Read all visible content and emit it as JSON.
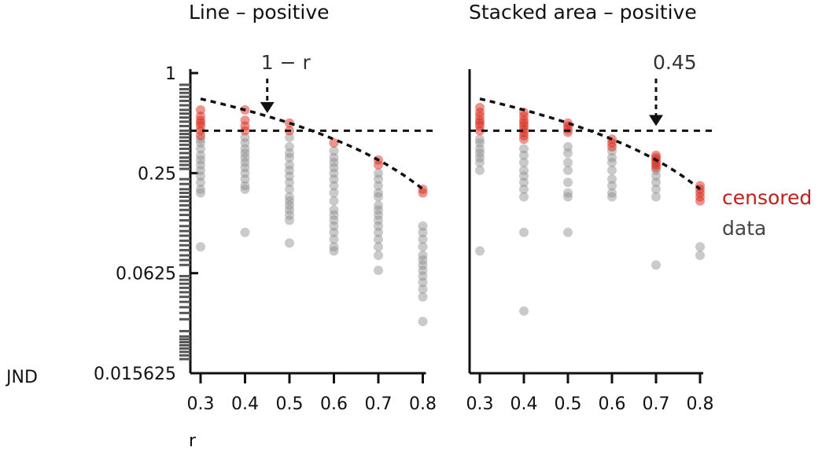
{
  "chart_data": {
    "type": "scatter",
    "xlabel": "r",
    "ylabel": "JND",
    "legend": {
      "placement": "right",
      "entries": [
        {
          "label": "censored",
          "color": "#c0201b"
        },
        {
          "label": "data",
          "color": "#444444"
        }
      ]
    },
    "x_ticks": [
      "0.3",
      "0.4",
      "0.5",
      "0.6",
      "0.7",
      "0.8"
    ],
    "y_ticks": [
      "1",
      "0.25",
      "0.0625",
      "0.015625"
    ],
    "y_scale": "log",
    "ylim": [
      0.015625,
      1
    ],
    "colors": {
      "censored": "#d92a1c",
      "data": "#8a8a8a",
      "rug": "#555555",
      "reference": "#111111"
    },
    "panels": [
      {
        "title": "Line – positive",
        "annotation": {
          "label": "1 − r",
          "x": 0.45
        },
        "threshold": 0.45,
        "curve": "1 − r",
        "censored": {
          "0.3": [
            0.42,
            0.45,
            0.48,
            0.5,
            0.52,
            0.55,
            0.6
          ],
          "0.4": [
            0.45,
            0.48,
            0.52,
            0.6
          ],
          "0.5": [
            0.45,
            0.5
          ],
          "0.6": [
            0.38
          ],
          "0.7": [
            0.28,
            0.3
          ],
          "0.8": [
            0.19,
            0.2
          ]
        },
        "data": {
          "0.3": [
            0.09,
            0.19,
            0.2,
            0.22,
            0.24,
            0.26,
            0.28,
            0.3,
            0.32,
            0.35,
            0.38,
            0.4
          ],
          "0.4": [
            0.11,
            0.2,
            0.21,
            0.23,
            0.25,
            0.27,
            0.29,
            0.31,
            0.33,
            0.35,
            0.38,
            0.41
          ],
          "0.5": [
            0.095,
            0.13,
            0.14,
            0.15,
            0.16,
            0.17,
            0.18,
            0.2,
            0.22,
            0.24,
            0.26,
            0.28,
            0.31,
            0.33,
            0.36,
            0.41
          ],
          "0.6": [
            0.085,
            0.09,
            0.1,
            0.11,
            0.12,
            0.13,
            0.14,
            0.15,
            0.17,
            0.19,
            0.21,
            0.23,
            0.25,
            0.27,
            0.29,
            0.31,
            0.34
          ],
          "0.7": [
            0.065,
            0.08,
            0.09,
            0.1,
            0.11,
            0.12,
            0.13,
            0.14,
            0.15,
            0.16,
            0.18,
            0.19,
            0.21,
            0.23,
            0.25
          ],
          "0.8": [
            0.032,
            0.045,
            0.05,
            0.055,
            0.06,
            0.065,
            0.07,
            0.075,
            0.08,
            0.09,
            0.1,
            0.11,
            0.12
          ]
        }
      },
      {
        "title": "Stacked area – positive",
        "annotation": {
          "label": "0.45",
          "x": 0.7
        },
        "threshold": 0.45,
        "curve": "1 − r",
        "censored": {
          "0.3": [
            0.45,
            0.48,
            0.5,
            0.52,
            0.55,
            0.58,
            0.62
          ],
          "0.4": [
            0.4,
            0.42,
            0.44,
            0.46,
            0.48,
            0.5,
            0.52,
            0.55,
            0.58
          ],
          "0.5": [
            0.44,
            0.46,
            0.48,
            0.5
          ],
          "0.6": [
            0.36,
            0.38,
            0.4
          ],
          "0.7": [
            0.27,
            0.28,
            0.29,
            0.3,
            0.31,
            0.32
          ],
          "0.8": [
            0.17,
            0.18,
            0.19,
            0.2,
            0.21
          ]
        },
        "data": {
          "0.3": [
            0.085,
            0.26,
            0.29,
            0.31,
            0.33,
            0.35,
            0.38,
            0.4
          ],
          "0.4": [
            0.037,
            0.11,
            0.18,
            0.2,
            0.22,
            0.24,
            0.26,
            0.29,
            0.32,
            0.35
          ],
          "0.5": [
            0.11,
            0.18,
            0.19,
            0.22,
            0.26,
            0.29,
            0.33,
            0.36
          ],
          "0.6": [
            0.18,
            0.19,
            0.21,
            0.23,
            0.26,
            0.29,
            0.31,
            0.34
          ],
          "0.7": [
            0.07,
            0.18,
            0.2,
            0.22,
            0.24,
            0.26
          ],
          "0.8": [
            0.08,
            0.09
          ]
        }
      }
    ],
    "rug": {
      "top": [
        0.85,
        0.8,
        0.76,
        0.72,
        0.68,
        0.64,
        0.6,
        0.57,
        0.54,
        0.51,
        0.48,
        0.45,
        0.43,
        0.41,
        0.39,
        0.37,
        0.35,
        0.33,
        0.31,
        0.295,
        0.28,
        0.265
      ],
      "mid": [
        0.23,
        0.215,
        0.2,
        0.19,
        0.18,
        0.17,
        0.16,
        0.15,
        0.14,
        0.13,
        0.12,
        0.112,
        0.105,
        0.098,
        0.092,
        0.086,
        0.08,
        0.075,
        0.07
      ],
      "low": [
        0.06,
        0.057,
        0.054,
        0.051,
        0.048,
        0.045,
        0.042,
        0.039,
        0.036,
        0.033
      ],
      "bottom": [
        0.028,
        0.026,
        0.025,
        0.024,
        0.023,
        0.022,
        0.021,
        0.02,
        0.019
      ]
    }
  }
}
